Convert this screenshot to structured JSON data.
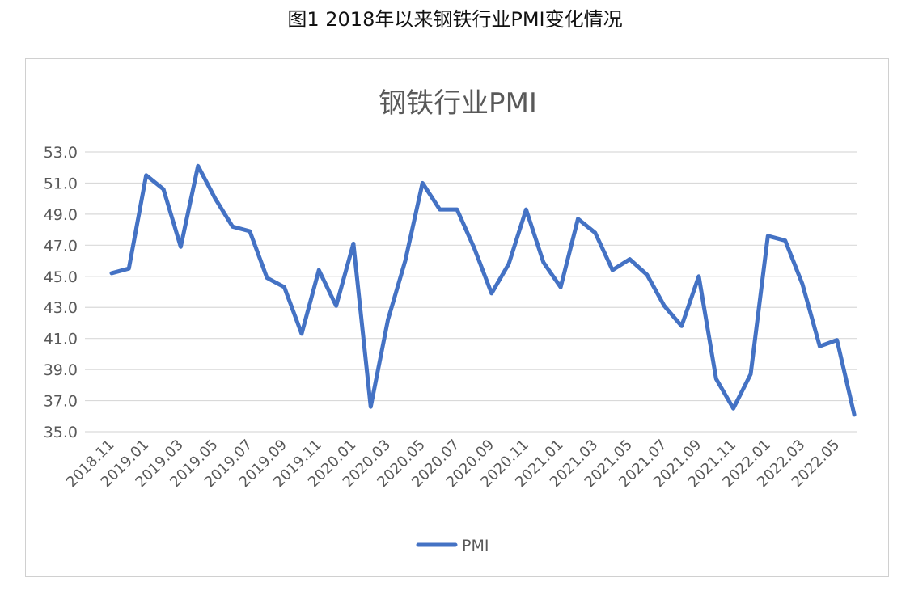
{
  "figure_caption": "图1  2018年以来钢铁行业PMI变化情况",
  "chart_data": {
    "type": "line",
    "title": "钢铁行业PMI",
    "xlabel": "",
    "ylabel": "",
    "ylim": [
      35.0,
      53.0
    ],
    "yticks": [
      "35.0",
      "37.0",
      "39.0",
      "41.0",
      "43.0",
      "45.0",
      "47.0",
      "49.0",
      "51.0",
      "53.0"
    ],
    "grid": true,
    "legend_position": "bottom",
    "x_tick_labels": [
      "2018.11",
      "2019.01",
      "2019.03",
      "2019.05",
      "2019.07",
      "2019.09",
      "2019.11",
      "2020.01",
      "2020.03",
      "2020.05",
      "2020.07",
      "2020.09",
      "2020.11",
      "2021.01",
      "2021.03",
      "2021.05",
      "2021.07",
      "2021.09",
      "2021.11",
      "2022.01",
      "2022.03",
      "2022.05"
    ],
    "categories": [
      "2018.11",
      "2018.12",
      "2019.01",
      "2019.02",
      "2019.03",
      "2019.04",
      "2019.05",
      "2019.06",
      "2019.07",
      "2019.08",
      "2019.09",
      "2019.10",
      "2019.11",
      "2019.12",
      "2020.01",
      "2020.02",
      "2020.03",
      "2020.04",
      "2020.05",
      "2020.06",
      "2020.07",
      "2020.08",
      "2020.09",
      "2020.10",
      "2020.11",
      "2020.12",
      "2021.01",
      "2021.02",
      "2021.03",
      "2021.04",
      "2021.05",
      "2021.06",
      "2021.07",
      "2021.08",
      "2021.09",
      "2021.10",
      "2021.11",
      "2021.12",
      "2022.01",
      "2022.02",
      "2022.03",
      "2022.04",
      "2022.05",
      "2022.06"
    ],
    "series": [
      {
        "name": "PMI",
        "color": "#4472c4",
        "values": [
          45.2,
          45.5,
          51.5,
          50.6,
          46.9,
          52.1,
          50.0,
          48.2,
          47.9,
          44.9,
          44.3,
          41.3,
          45.4,
          43.1,
          47.1,
          36.6,
          42.2,
          46.0,
          51.0,
          49.3,
          49.3,
          46.8,
          43.9,
          45.8,
          49.3,
          45.9,
          44.3,
          48.7,
          47.8,
          45.4,
          46.1,
          45.1,
          43.1,
          41.8,
          45.0,
          38.4,
          36.5,
          38.7,
          47.6,
          47.3,
          44.5,
          40.5,
          40.9,
          36.1
        ]
      }
    ]
  }
}
